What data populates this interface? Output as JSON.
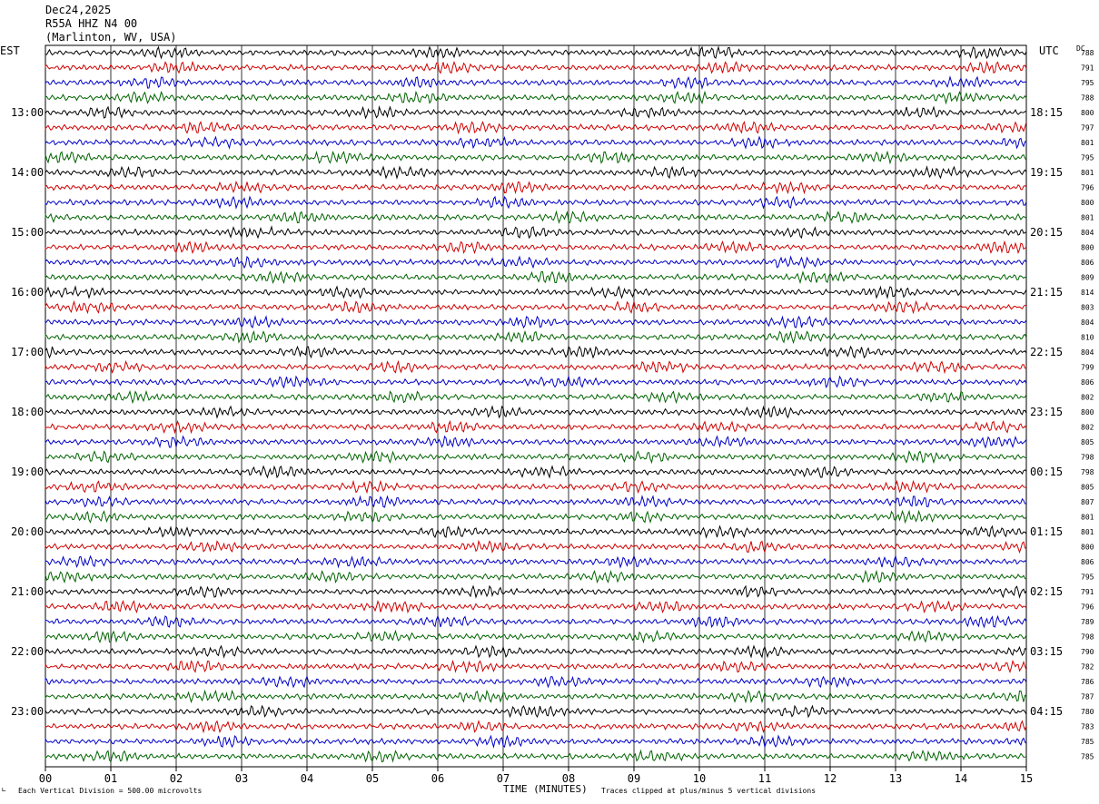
{
  "header": {
    "date": "Dec24,2025",
    "station": "R55A HHZ N4 00",
    "location": "(Marlinton, WV, USA)"
  },
  "left_zone_label": "EST",
  "right_zone_label": "UTC",
  "dc_label": "DC",
  "footer": {
    "scale_note": "Each Vertical Division =  500.00 microvolts",
    "xlabel": "TIME (MINUTES)",
    "clip_note": "Traces clipped at plus/minus 5 vertical divisions"
  },
  "chart_data": {
    "type": "line",
    "title": "R55A HHZ N4 00",
    "xlabel": "TIME (MINUTES)",
    "ylabel": "",
    "xlim": [
      0,
      15
    ],
    "x_ticks": [
      "00",
      "01",
      "02",
      "03",
      "04",
      "05",
      "06",
      "07",
      "08",
      "09",
      "10",
      "11",
      "12",
      "13",
      "14",
      "15"
    ],
    "left_hour_labels": [
      "13:00",
      "14:00",
      "15:00",
      "16:00",
      "17:00",
      "18:00",
      "19:00",
      "20:00",
      "21:00",
      "22:00",
      "23:00"
    ],
    "right_hour_labels": [
      "18:15",
      "19:15",
      "20:15",
      "21:15",
      "22:15",
      "23:15",
      "00:15",
      "01:15",
      "02:15",
      "03:15",
      "04:15"
    ],
    "hour_label_row_start": 4,
    "rows_per_hour": 4,
    "trace_color_cycle": [
      "#000000",
      "#d00000",
      "#0000c8",
      "#006400"
    ],
    "dc_offsets": [
      "788",
      "791",
      "795",
      "788",
      "800",
      "797",
      "801",
      "795",
      "801",
      "796",
      "800",
      "801",
      "804",
      "800",
      "806",
      "809",
      "814",
      "803",
      "804",
      "810",
      "804",
      "799",
      "806",
      "802",
      "800",
      "802",
      "805",
      "798",
      "798",
      "805",
      "807",
      "801",
      "801",
      "800",
      "806",
      "795",
      "791",
      "796",
      "789",
      "798",
      "790",
      "782",
      "786",
      "787",
      "780",
      "783",
      "785",
      "785"
    ],
    "grid": true
  }
}
